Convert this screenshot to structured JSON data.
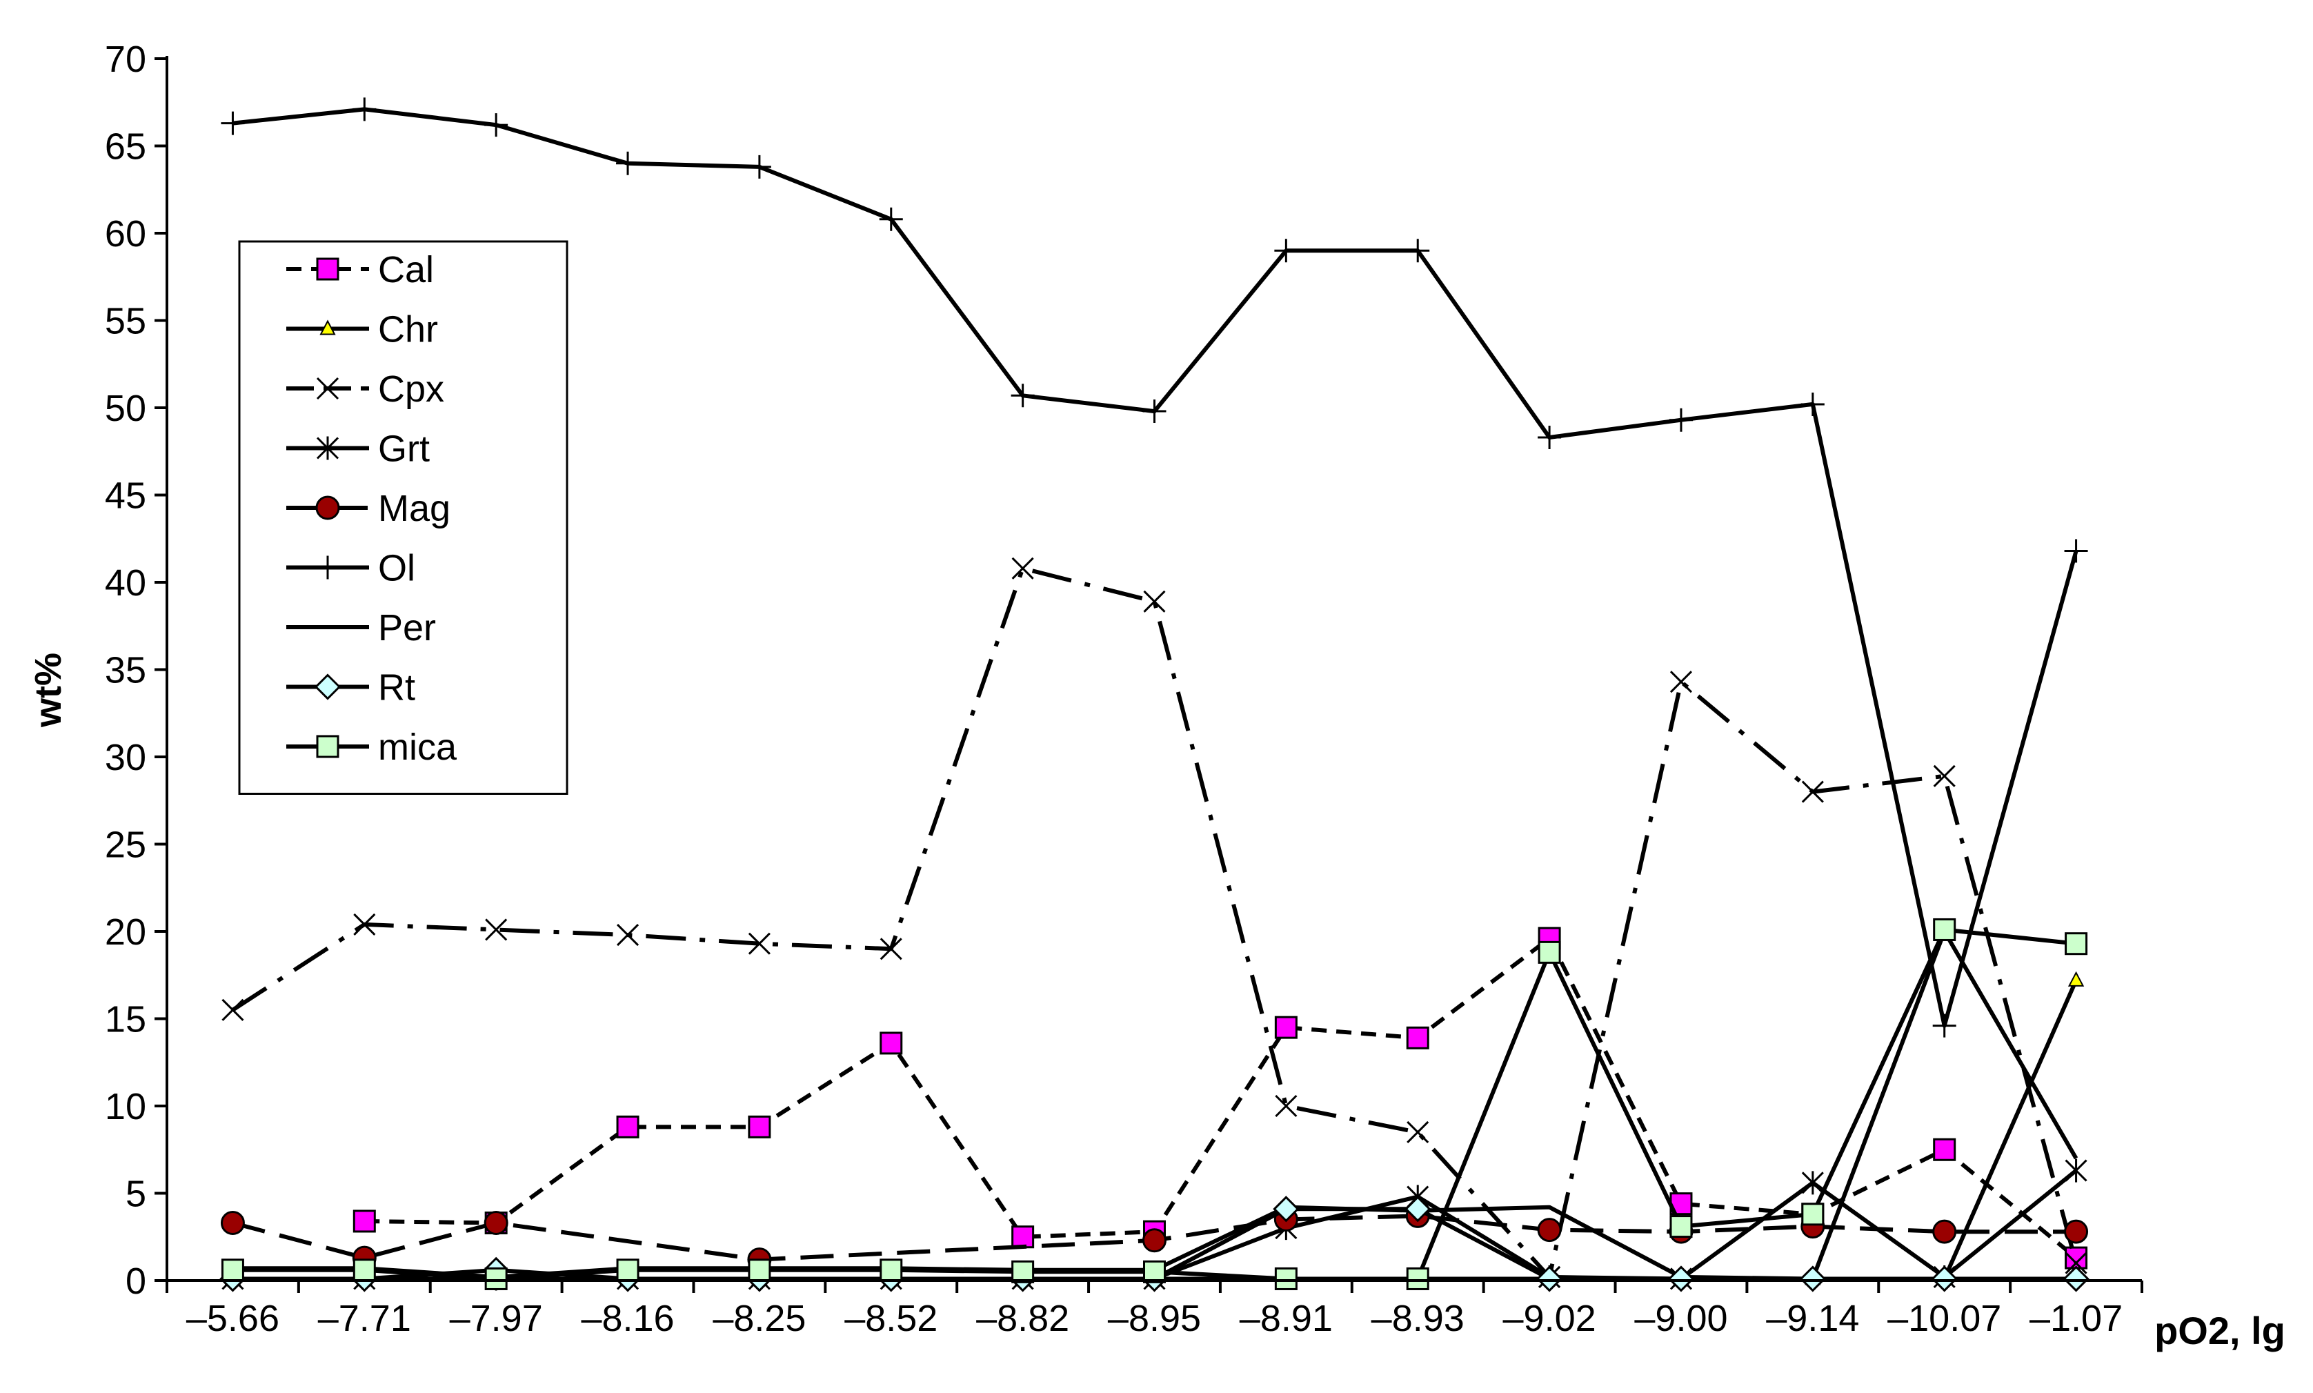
{
  "chart_data": {
    "type": "line",
    "ylabel": "wt%",
    "xlabel": "pO2, lg",
    "categories": [
      "–5.66",
      "–7.71",
      "–7.97",
      "–8.16",
      "–8.25",
      "–8.52",
      "–8.82",
      "–8.95",
      "–8.91",
      "–8.93",
      "–9.02",
      "–9.00",
      "–9.14",
      "–10.07",
      "–1.07"
    ],
    "ylim": [
      0,
      70
    ],
    "yticks": [
      0,
      5,
      10,
      15,
      20,
      25,
      30,
      35,
      40,
      45,
      50,
      55,
      60,
      65,
      70
    ],
    "grid": false,
    "legend": "left",
    "series": [
      {
        "name": "Cal",
        "marker": "square",
        "dash": "dashed",
        "fill": "#ff00ff",
        "values": [
          null,
          3.4,
          3.3,
          8.8,
          8.8,
          13.6,
          2.5,
          2.8,
          14.5,
          13.9,
          19.6,
          4.4,
          3.8,
          7.5,
          1.3
        ]
      },
      {
        "name": "Chr",
        "marker": "triangle",
        "dash": "solid",
        "fill": "#ffff00",
        "values": [
          0.1,
          0.1,
          0.1,
          0.1,
          0.1,
          0.1,
          0.1,
          0.1,
          0.1,
          0.1,
          0.1,
          0.1,
          0.1,
          0.1,
          17.2
        ]
      },
      {
        "name": "Cpx",
        "marker": "x",
        "dash": "dashdot",
        "fill": "none",
        "values": [
          15.5,
          20.4,
          20.1,
          19.8,
          19.3,
          19.0,
          40.8,
          38.9,
          10.0,
          8.5,
          0.2,
          34.3,
          28.0,
          28.9,
          1.0
        ]
      },
      {
        "name": "Grt",
        "marker": "star",
        "dash": "solid",
        "fill": "none",
        "values": [
          0.1,
          0.1,
          0.1,
          0.1,
          0.1,
          0.1,
          0.1,
          0.1,
          3.0,
          4.8,
          0.2,
          0.1,
          5.6,
          0.2,
          6.3
        ]
      },
      {
        "name": "Mag",
        "marker": "circle",
        "dash": "longdash",
        "fill": "#990000",
        "values": [
          3.3,
          1.3,
          3.3,
          null,
          1.2,
          null,
          null,
          2.3,
          3.5,
          3.7,
          2.9,
          2.8,
          3.1,
          2.8,
          2.8
        ]
      },
      {
        "name": "Ol",
        "marker": "plus",
        "dash": "solid",
        "fill": "none",
        "values": [
          66.3,
          67.1,
          66.2,
          64.0,
          63.8,
          60.8,
          50.7,
          49.8,
          59.0,
          59.0,
          48.3,
          49.3,
          50.2,
          14.6,
          41.8
        ]
      },
      {
        "name": "Per",
        "marker": "none",
        "dash": "solid",
        "fill": "none",
        "values": [
          0.7,
          0.7,
          0.2,
          0.7,
          0.7,
          0.7,
          0.6,
          0.6,
          4.2,
          4.0,
          4.2,
          0.2,
          0.1,
          20.0,
          7.0
        ]
      },
      {
        "name": "Rt",
        "marker": "diamond",
        "dash": "solid",
        "fill": "#ccffff",
        "values": [
          0.1,
          0.1,
          0.6,
          0.1,
          0.1,
          0.1,
          0.1,
          0.1,
          4.1,
          4.1,
          0.1,
          0.1,
          0.1,
          0.1,
          0.1
        ]
      },
      {
        "name": "mica",
        "marker": "square",
        "dash": "solid",
        "fill": "#ccffcc",
        "values": [
          0.6,
          0.6,
          0.1,
          0.6,
          0.6,
          0.6,
          0.5,
          0.5,
          0.1,
          0.1,
          18.8,
          3.1,
          3.8,
          20.1,
          19.3
        ]
      }
    ]
  }
}
